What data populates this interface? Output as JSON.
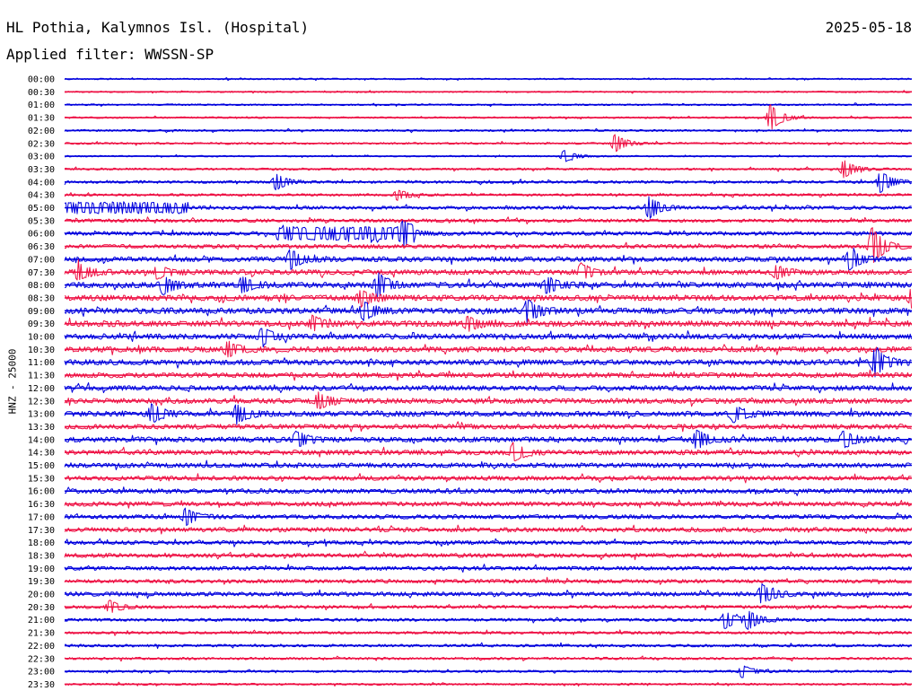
{
  "header": {
    "station": "HL Pothia, Kalymnos Isl. (Hospital)",
    "date": "2025-05-18",
    "filter": "Applied filter: WWSSN-SP"
  },
  "chart_data": {
    "type": "line",
    "title": "HL Pothia, Kalymnos Isl. (Hospital)",
    "ylabel": "HNZ - 25000",
    "xlabel": "",
    "rows": [
      "00:00",
      "00:30",
      "01:00",
      "01:30",
      "02:00",
      "02:30",
      "03:00",
      "03:30",
      "04:00",
      "04:30",
      "05:00",
      "05:30",
      "06:00",
      "06:30",
      "07:00",
      "07:30",
      "08:00",
      "08:30",
      "09:00",
      "09:30",
      "10:00",
      "10:30",
      "11:00",
      "11:30",
      "12:00",
      "12:30",
      "13:00",
      "13:30",
      "14:00",
      "14:30",
      "15:00",
      "15:30",
      "16:00",
      "16:30",
      "17:00",
      "17:30",
      "18:00",
      "18:30",
      "19:00",
      "19:30",
      "20:00",
      "20:30",
      "21:00",
      "21:30",
      "22:00",
      "22:30",
      "23:00",
      "23:30"
    ],
    "colors": [
      "#0000dd",
      "#ee1144"
    ],
    "noise_level": [
      0.6,
      0.6,
      0.7,
      0.7,
      0.8,
      0.8,
      0.6,
      0.9,
      1.1,
      1.0,
      1.4,
      1.4,
      1.6,
      1.6,
      2.0,
      2.1,
      2.3,
      2.3,
      2.4,
      2.4,
      2.2,
      2.2,
      2.2,
      2.1,
      2.0,
      2.1,
      2.2,
      2.0,
      2.1,
      2.0,
      1.9,
      1.8,
      1.9,
      1.8,
      1.7,
      1.8,
      1.6,
      1.7,
      1.6,
      1.5,
      1.7,
      1.3,
      1.2,
      1.1,
      1.1,
      1.0,
      0.9,
      0.8
    ],
    "events": [
      {
        "row": 3,
        "minute": 25.0,
        "amplitude": 14
      },
      {
        "row": 5,
        "minute": 19.5,
        "amplitude": 9
      },
      {
        "row": 6,
        "minute": 17.7,
        "amplitude": 6
      },
      {
        "row": 7,
        "minute": 27.6,
        "amplitude": 9
      },
      {
        "row": 8,
        "minute": 7.5,
        "amplitude": 8
      },
      {
        "row": 8,
        "minute": 28.9,
        "amplitude": 11
      },
      {
        "row": 9,
        "minute": 11.8,
        "amplitude": 5
      },
      {
        "row": 10,
        "minute": 20.7,
        "amplitude": 11
      },
      {
        "row": 12,
        "minute": 12.0,
        "amplitude": 8
      },
      {
        "row": 13,
        "minute": 28.6,
        "amplitude": 20
      },
      {
        "row": 14,
        "minute": 8.0,
        "amplitude": 10
      },
      {
        "row": 14,
        "minute": 27.8,
        "amplitude": 10
      },
      {
        "row": 15,
        "minute": 0.5,
        "amplitude": 8
      },
      {
        "row": 15,
        "minute": 3.3,
        "amplitude": 6
      },
      {
        "row": 15,
        "minute": 18.3,
        "amplitude": 8
      },
      {
        "row": 15,
        "minute": 25.2,
        "amplitude": 6
      },
      {
        "row": 16,
        "minute": 3.5,
        "amplitude": 8
      },
      {
        "row": 16,
        "minute": 6.3,
        "amplitude": 8
      },
      {
        "row": 16,
        "minute": 11.1,
        "amplitude": 12
      },
      {
        "row": 16,
        "minute": 17.1,
        "amplitude": 8
      },
      {
        "row": 17,
        "minute": 10.5,
        "amplitude": 8
      },
      {
        "row": 17,
        "minute": 30.0,
        "amplitude": 9
      },
      {
        "row": 18,
        "minute": 10.6,
        "amplitude": 9
      },
      {
        "row": 18,
        "minute": 16.4,
        "amplitude": 11
      },
      {
        "row": 19,
        "minute": 8.8,
        "amplitude": 7
      },
      {
        "row": 19,
        "minute": 14.3,
        "amplitude": 7
      },
      {
        "row": 20,
        "minute": 7.0,
        "amplitude": 8
      },
      {
        "row": 21,
        "minute": 5.8,
        "amplitude": 7
      },
      {
        "row": 22,
        "minute": 28.7,
        "amplitude": 14
      },
      {
        "row": 25,
        "minute": 9.0,
        "amplitude": 8
      },
      {
        "row": 26,
        "minute": 3.1,
        "amplitude": 9
      },
      {
        "row": 26,
        "minute": 6.1,
        "amplitude": 9
      },
      {
        "row": 26,
        "minute": 23.7,
        "amplitude": 8
      },
      {
        "row": 28,
        "minute": 8.2,
        "amplitude": 8
      },
      {
        "row": 28,
        "minute": 22.4,
        "amplitude": 9
      },
      {
        "row": 28,
        "minute": 27.6,
        "amplitude": 8
      },
      {
        "row": 29,
        "minute": 15.9,
        "amplitude": 9
      },
      {
        "row": 34,
        "minute": 4.3,
        "amplitude": 8
      },
      {
        "row": 40,
        "minute": 24.7,
        "amplitude": 10
      },
      {
        "row": 41,
        "minute": 1.6,
        "amplitude": 6
      },
      {
        "row": 42,
        "minute": 23.4,
        "amplitude": 9
      },
      {
        "row": 42,
        "minute": 24.2,
        "amplitude": 9
      },
      {
        "row": 46,
        "minute": 24.0,
        "amplitude": 6
      }
    ],
    "sustained": [
      {
        "row": 10,
        "from": 0.0,
        "to": 4.4,
        "amplitude": 5
      },
      {
        "row": 12,
        "from": 7.5,
        "to": 12.4,
        "amplitude": 6
      }
    ]
  }
}
